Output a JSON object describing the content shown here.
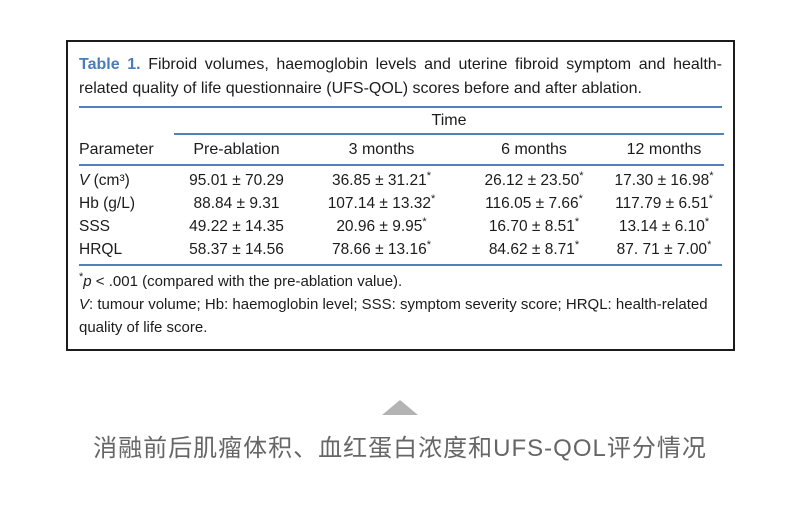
{
  "colors": {
    "accent_blue_rule": "#4f81bd",
    "title_blue": "#4a7cba",
    "caption_gray": "#666666",
    "arrow_gray": "#b3b3b3",
    "text_black": "#1c1c1c"
  },
  "table": {
    "title_label": "Table 1.",
    "title_text": " Fibroid volumes, haemoglobin levels and uterine fibroid symptom and health-related quality of life questionnaire (UFS-QOL) scores before and after ablation.",
    "time_header": "Time",
    "columns": [
      "Parameter",
      "Pre-ablation",
      "3 months",
      "6 months",
      "12 months"
    ],
    "rows": [
      {
        "label_i": "V",
        "label": " (cm³)",
        "cells": [
          {
            "v": "95.01 ± 70.29",
            "s": ""
          },
          {
            "v": "36.85 ± 31.21",
            "s": "*"
          },
          {
            "v": "26.12 ± 23.50",
            "s": "*"
          },
          {
            "v": "17.30 ± 16.98",
            "s": "*"
          }
        ]
      },
      {
        "label_i": "",
        "label": "Hb (g/L)",
        "cells": [
          {
            "v": "88.84 ± 9.31",
            "s": ""
          },
          {
            "v": "107.14 ± 13.32",
            "s": "*"
          },
          {
            "v": "116.05 ± 7.66",
            "s": "*"
          },
          {
            "v": "117.79 ± 6.51",
            "s": "*"
          }
        ]
      },
      {
        "label_i": "",
        "label": "SSS",
        "cells": [
          {
            "v": "49.22 ± 14.35",
            "s": ""
          },
          {
            "v": "20.96 ± 9.95",
            "s": "*"
          },
          {
            "v": "16.70 ± 8.51",
            "s": "*"
          },
          {
            "v": "13.14 ± 6.10",
            "s": "*"
          }
        ]
      },
      {
        "label_i": "",
        "label": "HRQL",
        "cells": [
          {
            "v": "58.37 ± 14.56",
            "s": ""
          },
          {
            "v": "78.66 ± 13.16",
            "s": "*"
          },
          {
            "v": "84.62 ± 8.71",
            "s": "*"
          },
          {
            "v": "87. 71 ± 7.00",
            "s": "*"
          }
        ]
      }
    ],
    "footnote1": {
      "sup": "*",
      "italic": "p",
      "rest": " < .001 (compared with the pre-ablation value)."
    },
    "footnote2": {
      "italic": "V",
      "rest": ": tumour volume; Hb: haemoglobin level; SSS: symptom severity score; HRQL: health-related quality of life score."
    }
  },
  "caption": {
    "text": "消融前后肌瘤体积、血红蛋白浓度和UFS-QOL评分情况"
  }
}
